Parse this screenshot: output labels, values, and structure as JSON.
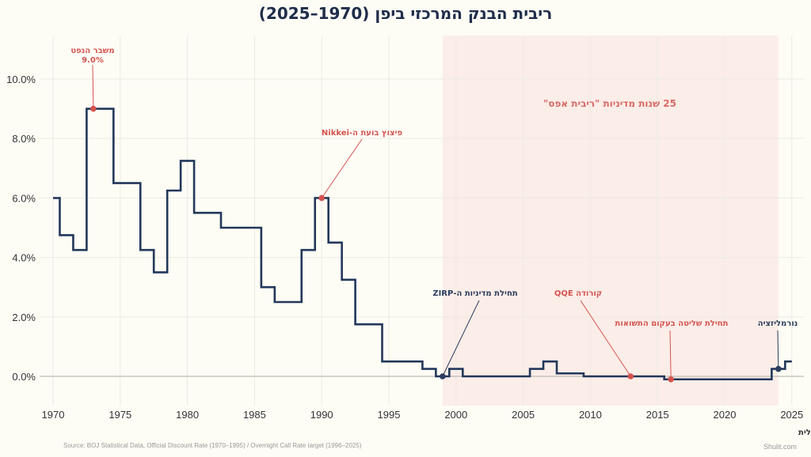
{
  "chart_data": {
    "type": "line",
    "step": true,
    "title": "ריבית הבנק המרכזי ביפן (1970–2025)",
    "xlabel": "",
    "ylabel": "",
    "xlim": [
      1970,
      2025
    ],
    "ylim": [
      -0.3,
      11
    ],
    "grid": true,
    "x_ticks": [
      "1970",
      "1975",
      "1980",
      "1985",
      "1990",
      "1995",
      "2000",
      "2005",
      "2010",
      "2015",
      "2020",
      "2025"
    ],
    "y_ticks": [
      "0.0%",
      "2.0%",
      "4.0%",
      "6.0%",
      "8.0%",
      "10.0%"
    ],
    "series": [
      {
        "color": "#22375a",
        "steps": [
          {
            "from": 1970.0,
            "to": 1970.5,
            "value": 6.0
          },
          {
            "from": 1970.5,
            "to": 1971.5,
            "value": 4.75
          },
          {
            "from": 1971.5,
            "to": 1972.5,
            "value": 4.25
          },
          {
            "from": 1972.5,
            "to": 1974.5,
            "value": 9.0
          },
          {
            "from": 1974.5,
            "to": 1976.5,
            "value": 6.5
          },
          {
            "from": 1976.5,
            "to": 1977.5,
            "value": 4.25
          },
          {
            "from": 1977.5,
            "to": 1978.5,
            "value": 3.5
          },
          {
            "from": 1978.5,
            "to": 1979.5,
            "value": 6.25
          },
          {
            "from": 1979.5,
            "to": 1980.5,
            "value": 7.25
          },
          {
            "from": 1980.5,
            "to": 1982.5,
            "value": 5.5
          },
          {
            "from": 1982.5,
            "to": 1985.5,
            "value": 5.0
          },
          {
            "from": 1985.5,
            "to": 1986.5,
            "value": 3.0
          },
          {
            "from": 1986.5,
            "to": 1988.5,
            "value": 2.5
          },
          {
            "from": 1988.5,
            "to": 1989.5,
            "value": 4.25
          },
          {
            "from": 1989.5,
            "to": 1990.5,
            "value": 6.0
          },
          {
            "from": 1990.5,
            "to": 1991.5,
            "value": 4.5
          },
          {
            "from": 1991.5,
            "to": 1992.5,
            "value": 3.25
          },
          {
            "from": 1992.5,
            "to": 1994.5,
            "value": 1.75
          },
          {
            "from": 1994.5,
            "to": 1997.5,
            "value": 0.5
          },
          {
            "from": 1997.5,
            "to": 1998.5,
            "value": 0.25
          },
          {
            "from": 1998.5,
            "to": 1999.5,
            "value": 0.0
          },
          {
            "from": 1999.5,
            "to": 2000.5,
            "value": 0.25
          },
          {
            "from": 2000.5,
            "to": 2005.5,
            "value": 0.0
          },
          {
            "from": 2005.5,
            "to": 2006.5,
            "value": 0.25
          },
          {
            "from": 2006.5,
            "to": 2007.5,
            "value": 0.5
          },
          {
            "from": 2007.5,
            "to": 2009.5,
            "value": 0.1
          },
          {
            "from": 2009.5,
            "to": 2015.5,
            "value": 0.0
          },
          {
            "from": 2015.5,
            "to": 2023.5,
            "value": -0.1
          },
          {
            "from": 2023.5,
            "to": 2024.5,
            "value": 0.25
          },
          {
            "from": 2024.5,
            "to": 2025.0,
            "value": 0.5
          }
        ]
      }
    ],
    "shaded_region": {
      "from": 1999,
      "to": 2024,
      "label": "25 שנות מדיניות \"ריבית אפס\"",
      "color": "#f9e8e3"
    },
    "annotations": [
      {
        "x": 1973,
        "y": 9.0,
        "label": "משבר הנפט",
        "sublabel": "9.0%",
        "color": "#d4534f"
      },
      {
        "x": 1990,
        "y": 6.0,
        "label": "פיצוץ בועת ה-Nikkei",
        "color": "#d4534f"
      },
      {
        "x": 1999,
        "y": 0.0,
        "label": "תחילת מדיניות ה-ZIRP",
        "color": "#2b3d5e"
      },
      {
        "x": 2013,
        "y": 0.0,
        "label": "קורודה QQE",
        "color": "#d4534f"
      },
      {
        "x": 2016,
        "y": -0.1,
        "label": "תחילת שליטה בעקום התשואות",
        "color": "#d4534f"
      },
      {
        "x": 2024,
        "y": 0.25,
        "label": "נורמליזציה",
        "color": "#2b3d5e"
      }
    ],
    "source": "Source: BOJ Statistical Data, Official Discount Rate (1970–1995) / Overnight Call Rate target (1996–2025)"
  },
  "branding": {
    "name": "תועלת שולית",
    "site": "Shulit.com"
  }
}
